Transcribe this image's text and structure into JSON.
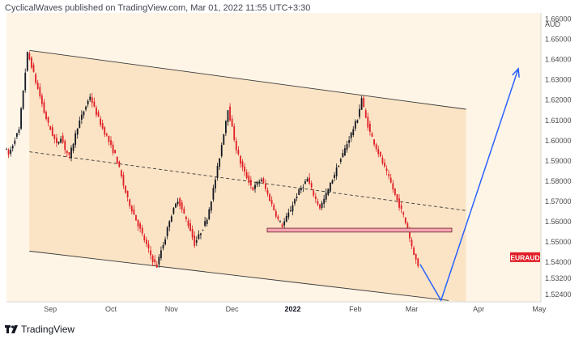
{
  "header": {
    "text": "CyclicalWaves published on TradingView.com, Mar 01, 2022 11:55 UTC+3:30"
  },
  "footer": {
    "brand": "TradingView"
  },
  "chart_data": {
    "type": "candlestick",
    "symbol": "EURAUD",
    "currency": "AUD",
    "last_price_label": "EURAUD",
    "x_ticks": [
      "Sep",
      "Oct",
      "Nov",
      "Dec",
      "2022",
      "Feb",
      "Mar",
      "Apr",
      "May"
    ],
    "y_ticks": [
      "1.66000",
      "1.65000",
      "1.64000",
      "1.63000",
      "1.62000",
      "1.61000",
      "1.60000",
      "1.59000",
      "1.58000",
      "1.57000",
      "1.56000",
      "1.55000",
      "1.54000",
      "1.53200",
      "1.52400"
    ],
    "ylim": [
      1.5205,
      1.663
    ],
    "price_path": [
      [
        0,
        1.597
      ],
      [
        2,
        1.593
      ],
      [
        4,
        1.598
      ],
      [
        5,
        1.601
      ],
      [
        7,
        1.605
      ],
      [
        9,
        1.625
      ],
      [
        11,
        1.643
      ],
      [
        13,
        1.637
      ],
      [
        15,
        1.629
      ],
      [
        17,
        1.622
      ],
      [
        19,
        1.614
      ],
      [
        21,
        1.608
      ],
      [
        23,
        1.603
      ],
      [
        25,
        1.598
      ],
      [
        27,
        1.602
      ],
      [
        29,
        1.596
      ],
      [
        31,
        1.592
      ],
      [
        33,
        1.599
      ],
      [
        35,
        1.607
      ],
      [
        37,
        1.612
      ],
      [
        39,
        1.617
      ],
      [
        41,
        1.622
      ],
      [
        43,
        1.616
      ],
      [
        45,
        1.611
      ],
      [
        47,
        1.606
      ],
      [
        49,
        1.602
      ],
      [
        51,
        1.597
      ],
      [
        53,
        1.593
      ],
      [
        55,
        1.586
      ],
      [
        57,
        1.578
      ],
      [
        59,
        1.571
      ],
      [
        61,
        1.566
      ],
      [
        63,
        1.561
      ],
      [
        65,
        1.556
      ],
      [
        67,
        1.551
      ],
      [
        69,
        1.546
      ],
      [
        71,
        1.541
      ],
      [
        73,
        1.538
      ],
      [
        75,
        1.546
      ],
      [
        77,
        1.552
      ],
      [
        79,
        1.561
      ],
      [
        81,
        1.566
      ],
      [
        83,
        1.571
      ],
      [
        85,
        1.566
      ],
      [
        87,
        1.561
      ],
      [
        89,
        1.556
      ],
      [
        91,
        1.549
      ],
      [
        93,
        1.553
      ],
      [
        95,
        1.557
      ],
      [
        97,
        1.562
      ],
      [
        99,
        1.571
      ],
      [
        101,
        1.581
      ],
      [
        103,
        1.592
      ],
      [
        105,
        1.604
      ],
      [
        107,
        1.616
      ],
      [
        109,
        1.606
      ],
      [
        111,
        1.596
      ],
      [
        113,
        1.589
      ],
      [
        115,
        1.584
      ],
      [
        117,
        1.58
      ],
      [
        119,
        1.576
      ],
      [
        121,
        1.579
      ],
      [
        123,
        1.581
      ],
      [
        125,
        1.576
      ],
      [
        127,
        1.571
      ],
      [
        129,
        1.566
      ],
      [
        131,
        1.561
      ],
      [
        133,
        1.558
      ],
      [
        135,
        1.562
      ],
      [
        137,
        1.566
      ],
      [
        139,
        1.571
      ],
      [
        141,
        1.575
      ],
      [
        143,
        1.578
      ],
      [
        145,
        1.581
      ],
      [
        147,
        1.576
      ],
      [
        149,
        1.571
      ],
      [
        151,
        1.567
      ],
      [
        153,
        1.571
      ],
      [
        155,
        1.576
      ],
      [
        157,
        1.581
      ],
      [
        159,
        1.586
      ],
      [
        161,
        1.591
      ],
      [
        163,
        1.596
      ],
      [
        165,
        1.601
      ],
      [
        167,
        1.606
      ],
      [
        169,
        1.611
      ],
      [
        171,
        1.621
      ],
      [
        173,
        1.611
      ],
      [
        175,
        1.604
      ],
      [
        177,
        1.599
      ],
      [
        179,
        1.594
      ],
      [
        181,
        1.589
      ],
      [
        183,
        1.584
      ],
      [
        185,
        1.579
      ],
      [
        187,
        1.573
      ],
      [
        189,
        1.568
      ],
      [
        191,
        1.563
      ],
      [
        193,
        1.556
      ],
      [
        195,
        1.548
      ],
      [
        197,
        1.541
      ],
      [
        198,
        1.538
      ]
    ],
    "channel": {
      "upper": [
        [
          11,
          1.6445
        ],
        [
          220,
          1.6155
        ]
      ],
      "lower": [
        [
          11,
          1.5455
        ],
        [
          207,
          1.5215
        ]
      ],
      "mid_dashed": [
        [
          11,
          1.5945
        ],
        [
          220,
          1.5655
        ]
      ],
      "fill_color": "#fbe4c5"
    },
    "support_zone": {
      "price_top": 1.5568,
      "price_bottom": 1.5549,
      "color": "#f5a5b0"
    },
    "projection_arrow": {
      "points": [
        [
          198,
          1.539
        ],
        [
          208,
          1.5212
        ],
        [
          245,
          1.6355
        ]
      ],
      "color": "#2962ff"
    },
    "colors": {
      "up": "#131722",
      "down": "#e01e26",
      "label_bg": "#e01e26"
    }
  }
}
